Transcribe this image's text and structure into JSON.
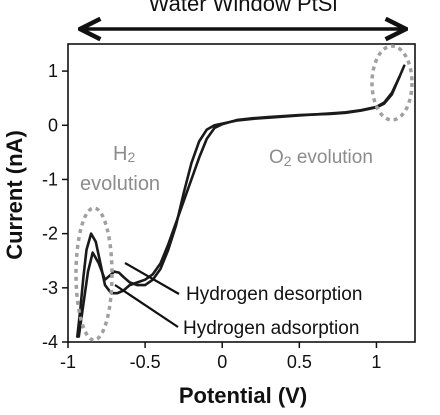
{
  "chart_data": {
    "type": "line",
    "title": "Water Window PtSi",
    "xlabel": "Potential (V)",
    "ylabel": "Current (nA)",
    "xlim": [
      -1.0,
      1.25
    ],
    "ylim": [
      -4.0,
      1.5
    ],
    "xticks": [
      -1,
      -0.5,
      0,
      0.5,
      1
    ],
    "xtick_labels": [
      "-1",
      "-0.5",
      "0",
      "0.5",
      "1"
    ],
    "yticks": [
      1,
      0,
      -1,
      -2,
      -3,
      -4
    ],
    "ytick_labels": [
      "1",
      "0",
      "-1",
      "-2",
      "-3",
      "-4"
    ],
    "grid": false,
    "series": [
      {
        "x": [
          -0.94,
          -0.92,
          -0.9,
          -0.88,
          -0.85,
          -0.82,
          -0.79,
          -0.76,
          -0.72,
          -0.68,
          -0.64,
          -0.6,
          -0.55,
          -0.5,
          -0.45,
          -0.4,
          -0.35,
          -0.3,
          -0.25,
          -0.2,
          -0.15,
          -0.1,
          -0.05,
          0.0,
          0.05,
          0.1,
          0.2,
          0.3,
          0.4,
          0.5,
          0.6,
          0.7,
          0.8,
          0.9,
          1.0,
          1.05,
          1.1,
          1.15,
          1.18
        ],
        "y": [
          -3.9,
          -3.4,
          -2.8,
          -2.3,
          -2.0,
          -2.15,
          -2.55,
          -2.95,
          -3.1,
          -3.1,
          -3.05,
          -2.95,
          -2.9,
          -2.85,
          -2.75,
          -2.55,
          -2.2,
          -1.8,
          -1.4,
          -1.0,
          -0.6,
          -0.25,
          -0.05,
          0.02,
          0.06,
          0.1,
          0.13,
          0.15,
          0.17,
          0.19,
          0.2,
          0.22,
          0.24,
          0.28,
          0.34,
          0.42,
          0.6,
          0.9,
          1.1
        ]
      },
      {
        "x": [
          -0.93,
          -0.9,
          -0.87,
          -0.84,
          -0.8,
          -0.76,
          -0.72,
          -0.7,
          -0.67,
          -0.64,
          -0.6,
          -0.55,
          -0.5,
          -0.45,
          -0.4,
          -0.35,
          -0.3,
          -0.25,
          -0.2,
          -0.15,
          -0.1,
          -0.05,
          0.0,
          0.05,
          0.1,
          0.2,
          0.3,
          0.4,
          0.5,
          0.6,
          0.7,
          0.8,
          0.9,
          1.0,
          1.05,
          1.1,
          1.15
        ],
        "y": [
          -3.9,
          -3.3,
          -2.7,
          -2.35,
          -2.55,
          -2.85,
          -2.75,
          -2.7,
          -2.72,
          -2.8,
          -2.9,
          -2.95,
          -2.95,
          -2.85,
          -2.65,
          -2.3,
          -1.85,
          -1.25,
          -0.7,
          -0.3,
          -0.08,
          0.0,
          0.03,
          0.06,
          0.09,
          0.12,
          0.14,
          0.16,
          0.18,
          0.2,
          0.21,
          0.23,
          0.27,
          0.33,
          0.4,
          0.57,
          0.9
        ]
      }
    ],
    "annotations": {
      "h2_prefix": "H",
      "h2_sub": "2",
      "h2_suffix": "evolution",
      "o2_prefix": "O",
      "o2_sub": "2",
      "o2_suffix": " evolution",
      "desorption": "Hydrogen desorption",
      "adsorption": "Hydrogen adsorption"
    },
    "colors": {
      "line": "#1a1a1a",
      "annotation": "#8c8c8c",
      "ellipse": "#a0a0a0"
    }
  }
}
